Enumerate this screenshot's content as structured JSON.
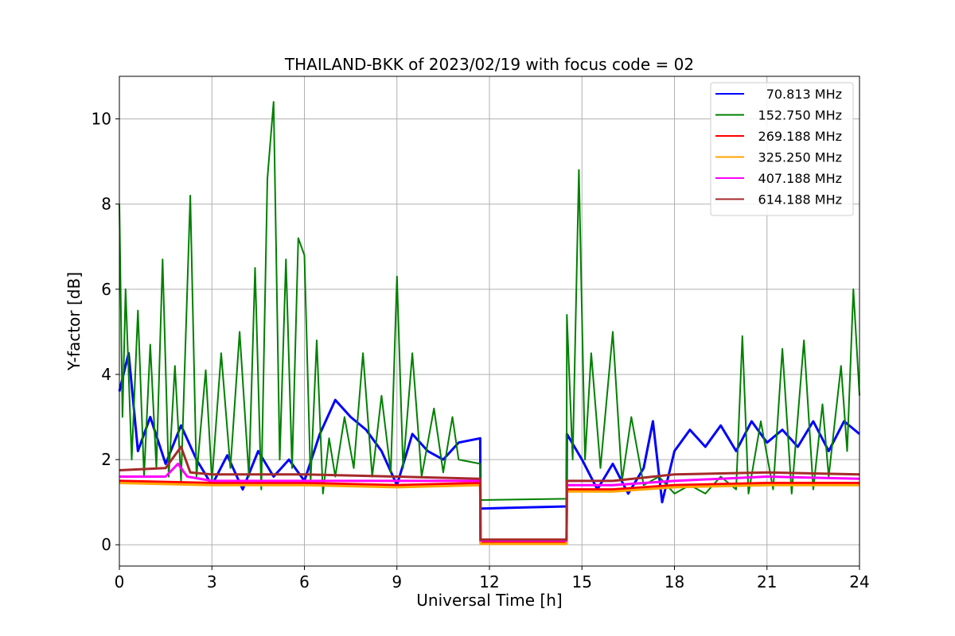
{
  "chart_data": {
    "type": "line",
    "title": "THAILAND-BKK of 2023/02/19 with focus code = 02",
    "xlabel": "Universal Time [h]",
    "ylabel": "Y-factor [dB]",
    "xlim": [
      0,
      24
    ],
    "ylim": [
      -0.5,
      11
    ],
    "x_ticks": [
      0,
      3,
      6,
      9,
      12,
      15,
      18,
      21,
      24
    ],
    "x_tick_labels": [
      "0",
      "3",
      "6",
      "9",
      "12",
      "15",
      "18",
      "21",
      "24"
    ],
    "y_ticks": [
      0,
      2,
      4,
      6,
      8,
      10
    ],
    "y_tick_labels": [
      "0",
      "2",
      "4",
      "6",
      "8",
      "10"
    ],
    "grid": true,
    "legend_position": "top-right",
    "series": [
      {
        "name": "70.813 MHz",
        "color": "#0000ff",
        "points": [
          [
            0.0,
            3.6
          ],
          [
            0.3,
            4.5
          ],
          [
            0.6,
            2.2
          ],
          [
            1.0,
            3.0
          ],
          [
            1.5,
            1.9
          ],
          [
            2.0,
            2.8
          ],
          [
            2.5,
            2.0
          ],
          [
            3.0,
            1.4
          ],
          [
            3.5,
            2.1
          ],
          [
            4.0,
            1.3
          ],
          [
            4.5,
            2.2
          ],
          [
            5.0,
            1.6
          ],
          [
            5.5,
            2.0
          ],
          [
            6.0,
            1.5
          ],
          [
            6.5,
            2.6
          ],
          [
            7.0,
            3.4
          ],
          [
            7.5,
            3.0
          ],
          [
            8.0,
            2.7
          ],
          [
            8.5,
            2.2
          ],
          [
            9.0,
            1.4
          ],
          [
            9.5,
            2.6
          ],
          [
            10.0,
            2.2
          ],
          [
            10.5,
            2.0
          ],
          [
            11.0,
            2.4
          ],
          [
            11.7,
            2.5
          ],
          [
            11.71,
            0.85
          ],
          [
            14.5,
            0.9
          ],
          [
            14.51,
            2.6
          ],
          [
            15.0,
            2.0
          ],
          [
            15.5,
            1.3
          ],
          [
            16.0,
            1.9
          ],
          [
            16.5,
            1.2
          ],
          [
            17.0,
            1.8
          ],
          [
            17.3,
            2.9
          ],
          [
            17.6,
            1.0
          ],
          [
            18.0,
            2.2
          ],
          [
            18.5,
            2.7
          ],
          [
            19.0,
            2.3
          ],
          [
            19.5,
            2.8
          ],
          [
            20.0,
            2.2
          ],
          [
            20.5,
            2.9
          ],
          [
            21.0,
            2.4
          ],
          [
            21.5,
            2.7
          ],
          [
            22.0,
            2.3
          ],
          [
            22.5,
            2.9
          ],
          [
            23.0,
            2.2
          ],
          [
            23.5,
            2.9
          ],
          [
            24.0,
            2.6
          ]
        ]
      },
      {
        "name": "152.750 MHz",
        "color": "#008000",
        "points": [
          [
            0.0,
            8.0
          ],
          [
            0.1,
            3.0
          ],
          [
            0.2,
            6.0
          ],
          [
            0.4,
            2.0
          ],
          [
            0.6,
            5.5
          ],
          [
            0.8,
            1.6
          ],
          [
            1.0,
            4.7
          ],
          [
            1.2,
            1.8
          ],
          [
            1.4,
            6.7
          ],
          [
            1.6,
            1.6
          ],
          [
            1.8,
            4.2
          ],
          [
            2.0,
            1.5
          ],
          [
            2.3,
            8.2
          ],
          [
            2.5,
            1.6
          ],
          [
            2.8,
            4.1
          ],
          [
            3.0,
            1.5
          ],
          [
            3.3,
            4.5
          ],
          [
            3.6,
            1.8
          ],
          [
            3.9,
            5.0
          ],
          [
            4.2,
            1.6
          ],
          [
            4.4,
            6.5
          ],
          [
            4.6,
            1.3
          ],
          [
            4.8,
            8.6
          ],
          [
            5.0,
            10.4
          ],
          [
            5.2,
            2.0
          ],
          [
            5.4,
            6.7
          ],
          [
            5.6,
            1.8
          ],
          [
            5.8,
            7.2
          ],
          [
            6.0,
            6.8
          ],
          [
            6.2,
            1.5
          ],
          [
            6.4,
            4.8
          ],
          [
            6.6,
            1.2
          ],
          [
            6.8,
            2.5
          ],
          [
            7.0,
            1.6
          ],
          [
            7.3,
            3.0
          ],
          [
            7.6,
            1.8
          ],
          [
            7.9,
            4.5
          ],
          [
            8.2,
            1.6
          ],
          [
            8.5,
            3.5
          ],
          [
            8.8,
            1.7
          ],
          [
            9.0,
            6.3
          ],
          [
            9.2,
            1.8
          ],
          [
            9.5,
            4.5
          ],
          [
            9.8,
            1.6
          ],
          [
            10.2,
            3.2
          ],
          [
            10.5,
            1.7
          ],
          [
            10.8,
            3.0
          ],
          [
            11.0,
            2.0
          ],
          [
            11.7,
            1.9
          ],
          [
            11.71,
            1.05
          ],
          [
            14.5,
            1.08
          ],
          [
            14.51,
            5.4
          ],
          [
            14.7,
            2.0
          ],
          [
            14.9,
            8.8
          ],
          [
            15.1,
            2.0
          ],
          [
            15.3,
            4.5
          ],
          [
            15.6,
            1.8
          ],
          [
            16.0,
            5.0
          ],
          [
            16.3,
            1.5
          ],
          [
            16.6,
            3.0
          ],
          [
            17.0,
            1.4
          ],
          [
            17.5,
            1.6
          ],
          [
            18.0,
            1.2
          ],
          [
            18.5,
            1.4
          ],
          [
            19.0,
            1.2
          ],
          [
            19.5,
            1.6
          ],
          [
            20.0,
            1.3
          ],
          [
            20.2,
            4.9
          ],
          [
            20.4,
            1.2
          ],
          [
            20.8,
            2.9
          ],
          [
            21.2,
            1.3
          ],
          [
            21.5,
            4.6
          ],
          [
            21.8,
            1.2
          ],
          [
            22.2,
            4.8
          ],
          [
            22.5,
            1.3
          ],
          [
            22.8,
            3.3
          ],
          [
            23.0,
            1.6
          ],
          [
            23.4,
            4.2
          ],
          [
            23.6,
            2.2
          ],
          [
            23.8,
            6.0
          ],
          [
            24.0,
            3.5
          ]
        ]
      },
      {
        "name": "269.188 MHz",
        "color": "#ff0000",
        "points": [
          [
            0.0,
            1.5
          ],
          [
            3.0,
            1.45
          ],
          [
            6.0,
            1.45
          ],
          [
            9.0,
            1.4
          ],
          [
            11.7,
            1.45
          ],
          [
            11.71,
            0.05
          ],
          [
            14.5,
            0.05
          ],
          [
            14.51,
            1.3
          ],
          [
            16.0,
            1.3
          ],
          [
            18.0,
            1.4
          ],
          [
            21.0,
            1.45
          ],
          [
            24.0,
            1.45
          ]
        ]
      },
      {
        "name": "325.250 MHz",
        "color": "#ffa500",
        "points": [
          [
            0.0,
            1.45
          ],
          [
            3.0,
            1.4
          ],
          [
            6.0,
            1.4
          ],
          [
            9.0,
            1.35
          ],
          [
            11.7,
            1.4
          ],
          [
            11.71,
            0.02
          ],
          [
            14.5,
            0.02
          ],
          [
            14.51,
            1.25
          ],
          [
            16.0,
            1.25
          ],
          [
            18.0,
            1.35
          ],
          [
            21.0,
            1.4
          ],
          [
            24.0,
            1.4
          ]
        ]
      },
      {
        "name": "407.188 MHz",
        "color": "#ff00ff",
        "points": [
          [
            0.0,
            1.6
          ],
          [
            1.5,
            1.6
          ],
          [
            1.9,
            1.9
          ],
          [
            2.2,
            1.6
          ],
          [
            3.0,
            1.5
          ],
          [
            6.0,
            1.5
          ],
          [
            9.0,
            1.5
          ],
          [
            11.7,
            1.5
          ],
          [
            11.71,
            0.1
          ],
          [
            14.5,
            0.1
          ],
          [
            14.51,
            1.4
          ],
          [
            16.0,
            1.4
          ],
          [
            18.0,
            1.5
          ],
          [
            21.0,
            1.6
          ],
          [
            24.0,
            1.55
          ]
        ]
      },
      {
        "name": "614.188 MHz",
        "color": "#a52a2a",
        "points": [
          [
            0.0,
            1.75
          ],
          [
            1.5,
            1.8
          ],
          [
            2.0,
            2.3
          ],
          [
            2.3,
            1.7
          ],
          [
            3.0,
            1.65
          ],
          [
            6.0,
            1.65
          ],
          [
            9.0,
            1.6
          ],
          [
            11.7,
            1.55
          ],
          [
            11.71,
            0.12
          ],
          [
            14.5,
            0.12
          ],
          [
            14.51,
            1.5
          ],
          [
            16.0,
            1.5
          ],
          [
            18.0,
            1.65
          ],
          [
            21.0,
            1.7
          ],
          [
            24.0,
            1.65
          ]
        ]
      }
    ]
  }
}
